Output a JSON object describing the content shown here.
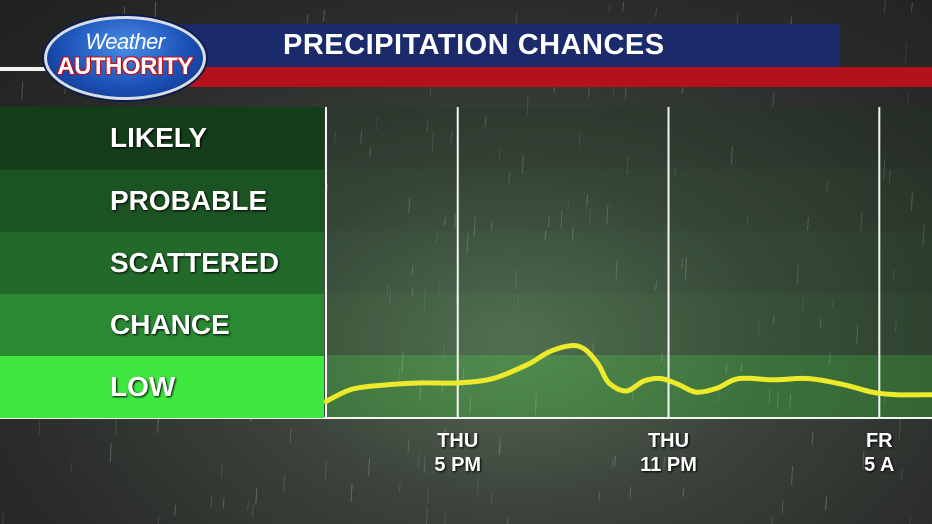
{
  "logo": {
    "line1": "Weather",
    "line2": "AUTHORITY"
  },
  "header": {
    "title": "PRECIPITATION CHANCES"
  },
  "colors": {
    "title_bar": "#1b2a6b",
    "accent_red": "#b3121c",
    "line": "#ecea2a",
    "band_likely": "#143d19",
    "band_probable": "#1c5323",
    "band_scattered": "#226a2a",
    "band_chance": "#2a8a33",
    "band_low": "#3fe83f"
  },
  "chart_data": {
    "type": "line",
    "title": "PRECIPITATION CHANCES",
    "categories": [
      "LOW",
      "CHANCE",
      "SCATTERED",
      "PROBABLE",
      "LIKELY"
    ],
    "ylim": [
      0,
      5
    ],
    "x_ticks": [
      {
        "line1": "THU",
        "line2": "5 PM",
        "x": 17
      },
      {
        "line1": "THU",
        "line2": "11 PM",
        "x": 23
      },
      {
        "line1": "FR",
        "line2": "5 A",
        "x": 29
      }
    ],
    "xlim": [
      13.25,
      30.5
    ],
    "grid": "vertical lines at time ticks",
    "series": [
      {
        "x": [
          13.25,
          14.0,
          15.0,
          16.0,
          17.0,
          18.0,
          19.0,
          19.6,
          20.2,
          20.6,
          21.0,
          21.3,
          21.8,
          22.3,
          22.8,
          23.3,
          23.8,
          24.4,
          25.0,
          26.0,
          27.0,
          28.0,
          28.8,
          29.5,
          30.5
        ],
        "values": [
          0.25,
          0.45,
          0.52,
          0.55,
          0.55,
          0.62,
          0.85,
          1.05,
          1.15,
          1.1,
          0.85,
          0.55,
          0.42,
          0.58,
          0.62,
          0.52,
          0.4,
          0.47,
          0.62,
          0.6,
          0.62,
          0.52,
          0.4,
          0.36,
          0.36
        ]
      }
    ]
  }
}
